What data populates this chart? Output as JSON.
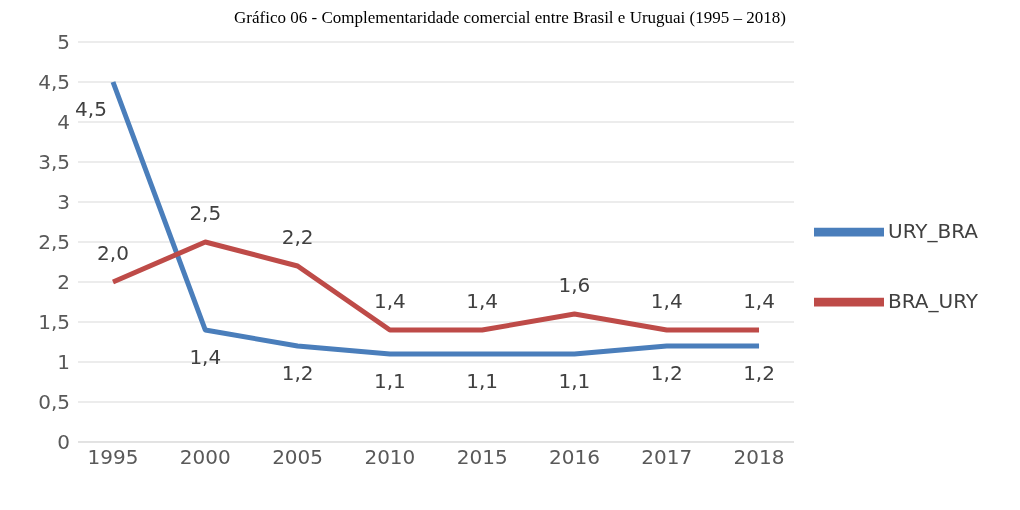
{
  "chart_data": {
    "type": "line",
    "title": "Gráfico 06 - Complementaridade comercial entre Brasil e Uruguai (1995 – 2018)",
    "categories": [
      "1995",
      "2000",
      "2005",
      "2010",
      "2015",
      "2016",
      "2017",
      "2018"
    ],
    "series": [
      {
        "name": "URY_BRA",
        "color": "#4a7ebb",
        "values": [
          4.5,
          1.4,
          1.2,
          1.1,
          1.1,
          1.1,
          1.2,
          1.2
        ],
        "value_labels": [
          "4,5",
          "1,4",
          "1,2",
          "1,1",
          "1,1",
          "1,1",
          "1,2",
          "1,2"
        ]
      },
      {
        "name": "BRA_URY",
        "color": "#be4b48",
        "values": [
          2.0,
          2.5,
          2.2,
          1.4,
          1.4,
          1.6,
          1.4,
          1.4
        ],
        "value_labels": [
          "2,0",
          "2,5",
          "2,2",
          "1,4",
          "1,4",
          "1,6",
          "1,4",
          "1,4"
        ]
      }
    ],
    "ylim": [
      0,
      5
    ],
    "yticks": [
      0,
      {
        "value": 0.5,
        "label": "0,5"
      },
      1,
      {
        "value": 1.5,
        "label": "1,5"
      },
      2,
      {
        "value": 2.5,
        "label": "2,5"
      },
      3,
      {
        "value": 3.5,
        "label": "3,5"
      },
      4,
      {
        "value": 4.5,
        "label": "4,5"
      },
      5
    ],
    "grid": "y",
    "legend": "right",
    "marker": "none",
    "line_style": "solid"
  }
}
